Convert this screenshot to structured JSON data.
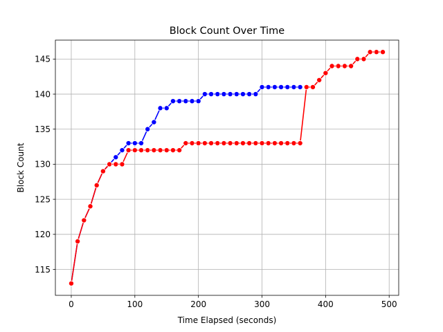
{
  "chart_data": {
    "type": "line",
    "title": "Block Count Over Time",
    "xlabel": "Time Elapsed (seconds)",
    "ylabel": "Block Count",
    "xlim": [
      -25,
      515
    ],
    "ylim": [
      111.3,
      147.7
    ],
    "xticks": [
      0,
      100,
      200,
      300,
      400,
      500
    ],
    "yticks": [
      115,
      120,
      125,
      130,
      135,
      140,
      145
    ],
    "grid": true,
    "legend": "none",
    "series": [
      {
        "color": "#0000ff",
        "marker": "circle",
        "x": [
          0,
          10,
          20,
          30,
          40,
          50,
          60,
          70,
          80,
          90,
          100,
          110,
          120,
          130,
          140,
          150,
          160,
          170,
          180,
          190,
          200,
          210,
          220,
          230,
          240,
          250,
          260,
          270,
          280,
          290,
          300,
          310,
          320,
          330,
          340,
          350,
          360
        ],
        "y": [
          113,
          119,
          122,
          124,
          127,
          129,
          130,
          131,
          132,
          133,
          133,
          133,
          135,
          136,
          138,
          138,
          139,
          139,
          139,
          139,
          139,
          140,
          140,
          140,
          140,
          140,
          140,
          140,
          140,
          140,
          141,
          141,
          141,
          141,
          141,
          141,
          141
        ]
      },
      {
        "color": "#ff0000",
        "marker": "circle",
        "x": [
          0,
          10,
          20,
          30,
          40,
          50,
          60,
          70,
          80,
          90,
          100,
          110,
          120,
          130,
          140,
          150,
          160,
          170,
          180,
          190,
          200,
          210,
          220,
          230,
          240,
          250,
          260,
          270,
          280,
          290,
          300,
          310,
          320,
          330,
          340,
          350,
          360,
          370,
          380,
          390,
          400,
          410,
          420,
          430,
          440,
          450,
          460,
          470,
          480,
          490
        ],
        "y": [
          113,
          119,
          122,
          124,
          127,
          129,
          130,
          130,
          130,
          132,
          132,
          132,
          132,
          132,
          132,
          132,
          132,
          132,
          133,
          133,
          133,
          133,
          133,
          133,
          133,
          133,
          133,
          133,
          133,
          133,
          133,
          133,
          133,
          133,
          133,
          133,
          133,
          141,
          141,
          142,
          143,
          144,
          144,
          144,
          144,
          145,
          145,
          146,
          146,
          146
        ]
      }
    ]
  }
}
